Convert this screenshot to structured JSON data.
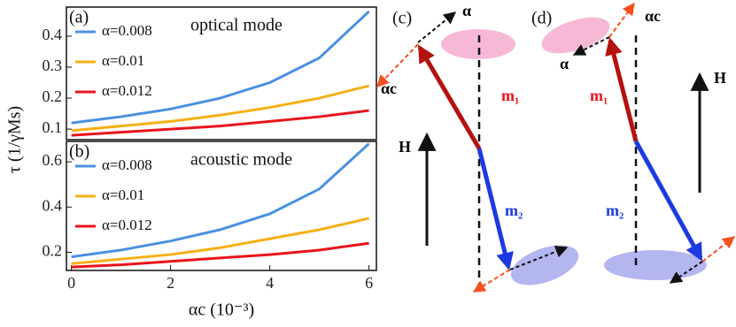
{
  "chart_data": [
    {
      "type": "line",
      "panel_label": "(a)",
      "annotation": "optical mode",
      "x": [
        0,
        1,
        2,
        3,
        4,
        5,
        6
      ],
      "xlim": [
        -0.1,
        6.15
      ],
      "ylim": [
        0.066,
        0.494
      ],
      "yticks": [
        0.1,
        0.2,
        0.3,
        0.4
      ],
      "series": [
        {
          "name": "α=0.008",
          "color": "#4a90e2",
          "values": [
            0.12,
            0.14,
            0.165,
            0.2,
            0.25,
            0.33,
            0.48
          ]
        },
        {
          "name": "α=0.01",
          "color": "#f5b014",
          "values": [
            0.095,
            0.11,
            0.125,
            0.145,
            0.17,
            0.2,
            0.24
          ]
        },
        {
          "name": "α=0.012",
          "color": "#e8141c",
          "values": [
            0.08,
            0.09,
            0.1,
            0.11,
            0.125,
            0.14,
            0.16
          ]
        }
      ]
    },
    {
      "type": "line",
      "panel_label": "(b)",
      "annotation": "acoustic mode",
      "x": [
        0,
        1,
        2,
        3,
        4,
        5,
        6
      ],
      "xlim": [
        -0.1,
        6.15
      ],
      "xticks": [
        0,
        2,
        4,
        6
      ],
      "ylim": [
        0.12,
        0.69
      ],
      "yticks": [
        0.2,
        0.4,
        0.6
      ],
      "xlabel": "αc (10⁻³)",
      "ylabel": "τ (1/γMs)",
      "series": [
        {
          "name": "α=0.008",
          "color": "#4a90e2",
          "values": [
            0.18,
            0.21,
            0.25,
            0.3,
            0.37,
            0.48,
            0.68
          ]
        },
        {
          "name": "α=0.01",
          "color": "#f5b014",
          "values": [
            0.15,
            0.17,
            0.19,
            0.22,
            0.26,
            0.3,
            0.35
          ]
        },
        {
          "name": "α=0.012",
          "color": "#e8141c",
          "values": [
            0.135,
            0.145,
            0.16,
            0.175,
            0.19,
            0.21,
            0.24
          ]
        }
      ]
    }
  ],
  "diagrams": {
    "c": {
      "panel": "(c)",
      "alpha": "α",
      "alpha_c": "αc",
      "m1": "m₁",
      "m2": "m₂",
      "field": "H"
    },
    "d": {
      "panel": "(d)",
      "alpha": "α",
      "alpha_c": "αc",
      "m1": "m₁",
      "m2": "m₂",
      "field": "H"
    }
  }
}
